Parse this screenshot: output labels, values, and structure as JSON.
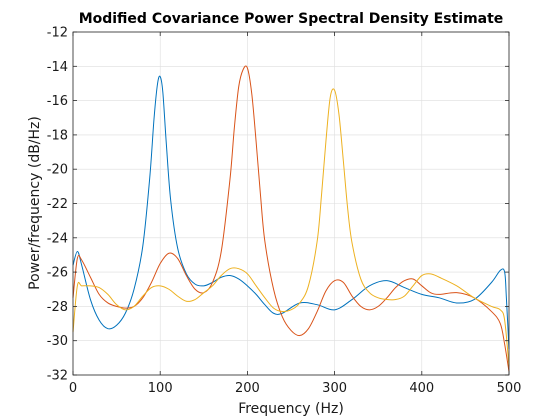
{
  "chart_data": {
    "type": "line",
    "title": "Modified Covariance Power Spectral Density Estimate",
    "xlabel": "Frequency (Hz)",
    "ylabel": "Power/frequency (dB/Hz)",
    "xlim": [
      0,
      500
    ],
    "ylim": [
      -32,
      -12
    ],
    "xticks": [
      0,
      100,
      200,
      300,
      400,
      500
    ],
    "yticks": [
      -32,
      -30,
      -28,
      -26,
      -24,
      -22,
      -20,
      -18,
      -16,
      -14,
      -12
    ],
    "grid": true,
    "series": [
      {
        "color": "#0072BD",
        "x": [
          0,
          5,
          10,
          20,
          30,
          40,
          50,
          60,
          70,
          80,
          88,
          93,
          97,
          100,
          103,
          107,
          112,
          120,
          130,
          140,
          150,
          160,
          170,
          180,
          190,
          200,
          210,
          220,
          230,
          240,
          260,
          280,
          300,
          320,
          340,
          360,
          380,
          400,
          420,
          440,
          460,
          480,
          490,
          495,
          497,
          500
        ],
        "y": [
          -25.6,
          -24.8,
          -25.6,
          -27.6,
          -28.8,
          -29.3,
          -29.1,
          -28.4,
          -27.0,
          -24.5,
          -20.5,
          -17.0,
          -15.0,
          -14.6,
          -15.5,
          -18.5,
          -21.8,
          -24.6,
          -26.1,
          -26.7,
          -26.8,
          -26.6,
          -26.3,
          -26.2,
          -26.4,
          -26.8,
          -27.3,
          -27.9,
          -28.4,
          -28.4,
          -27.8,
          -27.9,
          -28.2,
          -27.6,
          -26.8,
          -26.5,
          -26.9,
          -27.3,
          -27.5,
          -27.8,
          -27.6,
          -26.6,
          -25.9,
          -26.0,
          -27.5,
          -30.5
        ]
      },
      {
        "color": "#D95319",
        "x": [
          0,
          5,
          10,
          20,
          30,
          40,
          50,
          60,
          70,
          80,
          90,
          100,
          110,
          120,
          130,
          140,
          150,
          160,
          170,
          180,
          185,
          190,
          195,
          200,
          205,
          210,
          215,
          220,
          230,
          240,
          250,
          260,
          270,
          280,
          290,
          300,
          310,
          320,
          330,
          340,
          350,
          360,
          370,
          380,
          390,
          400,
          410,
          420,
          440,
          460,
          480,
          490,
          495,
          500
        ],
        "y": [
          -27.5,
          -25.2,
          -25.3,
          -26.3,
          -27.3,
          -27.8,
          -28.0,
          -28.1,
          -28.0,
          -27.5,
          -26.6,
          -25.5,
          -24.9,
          -25.2,
          -26.2,
          -27.0,
          -27.2,
          -26.6,
          -24.8,
          -20.6,
          -17.6,
          -15.2,
          -14.2,
          -14.1,
          -15.6,
          -18.4,
          -21.5,
          -24.2,
          -27.0,
          -28.6,
          -29.4,
          -29.7,
          -29.3,
          -28.3,
          -27.1,
          -26.5,
          -26.6,
          -27.4,
          -28.0,
          -28.2,
          -28.0,
          -27.5,
          -26.9,
          -26.5,
          -26.4,
          -26.8,
          -27.2,
          -27.3,
          -27.2,
          -27.5,
          -28.3,
          -29.0,
          -30.2,
          -31.8
        ]
      },
      {
        "color": "#EDB120",
        "x": [
          0,
          5,
          10,
          20,
          30,
          40,
          50,
          60,
          70,
          80,
          90,
          100,
          110,
          120,
          130,
          140,
          150,
          160,
          170,
          180,
          190,
          200,
          210,
          220,
          230,
          240,
          250,
          260,
          270,
          280,
          285,
          290,
          295,
          300,
          305,
          310,
          315,
          320,
          330,
          340,
          350,
          360,
          370,
          380,
          390,
          400,
          410,
          420,
          440,
          460,
          480,
          490,
          495,
          500
        ],
        "y": [
          -29.5,
          -26.8,
          -26.8,
          -26.8,
          -26.9,
          -27.3,
          -27.9,
          -28.2,
          -28.0,
          -27.4,
          -26.9,
          -26.8,
          -27.0,
          -27.4,
          -27.7,
          -27.6,
          -27.2,
          -26.8,
          -26.2,
          -25.8,
          -25.8,
          -26.1,
          -26.8,
          -27.5,
          -28.1,
          -28.3,
          -28.2,
          -27.8,
          -26.8,
          -24.2,
          -21.5,
          -18.4,
          -15.8,
          -15.4,
          -16.8,
          -19.5,
          -22.3,
          -24.3,
          -26.4,
          -27.2,
          -27.5,
          -27.6,
          -27.6,
          -27.4,
          -26.8,
          -26.2,
          -26.1,
          -26.3,
          -26.8,
          -27.5,
          -28.0,
          -28.2,
          -28.8,
          -31.5
        ]
      }
    ]
  }
}
